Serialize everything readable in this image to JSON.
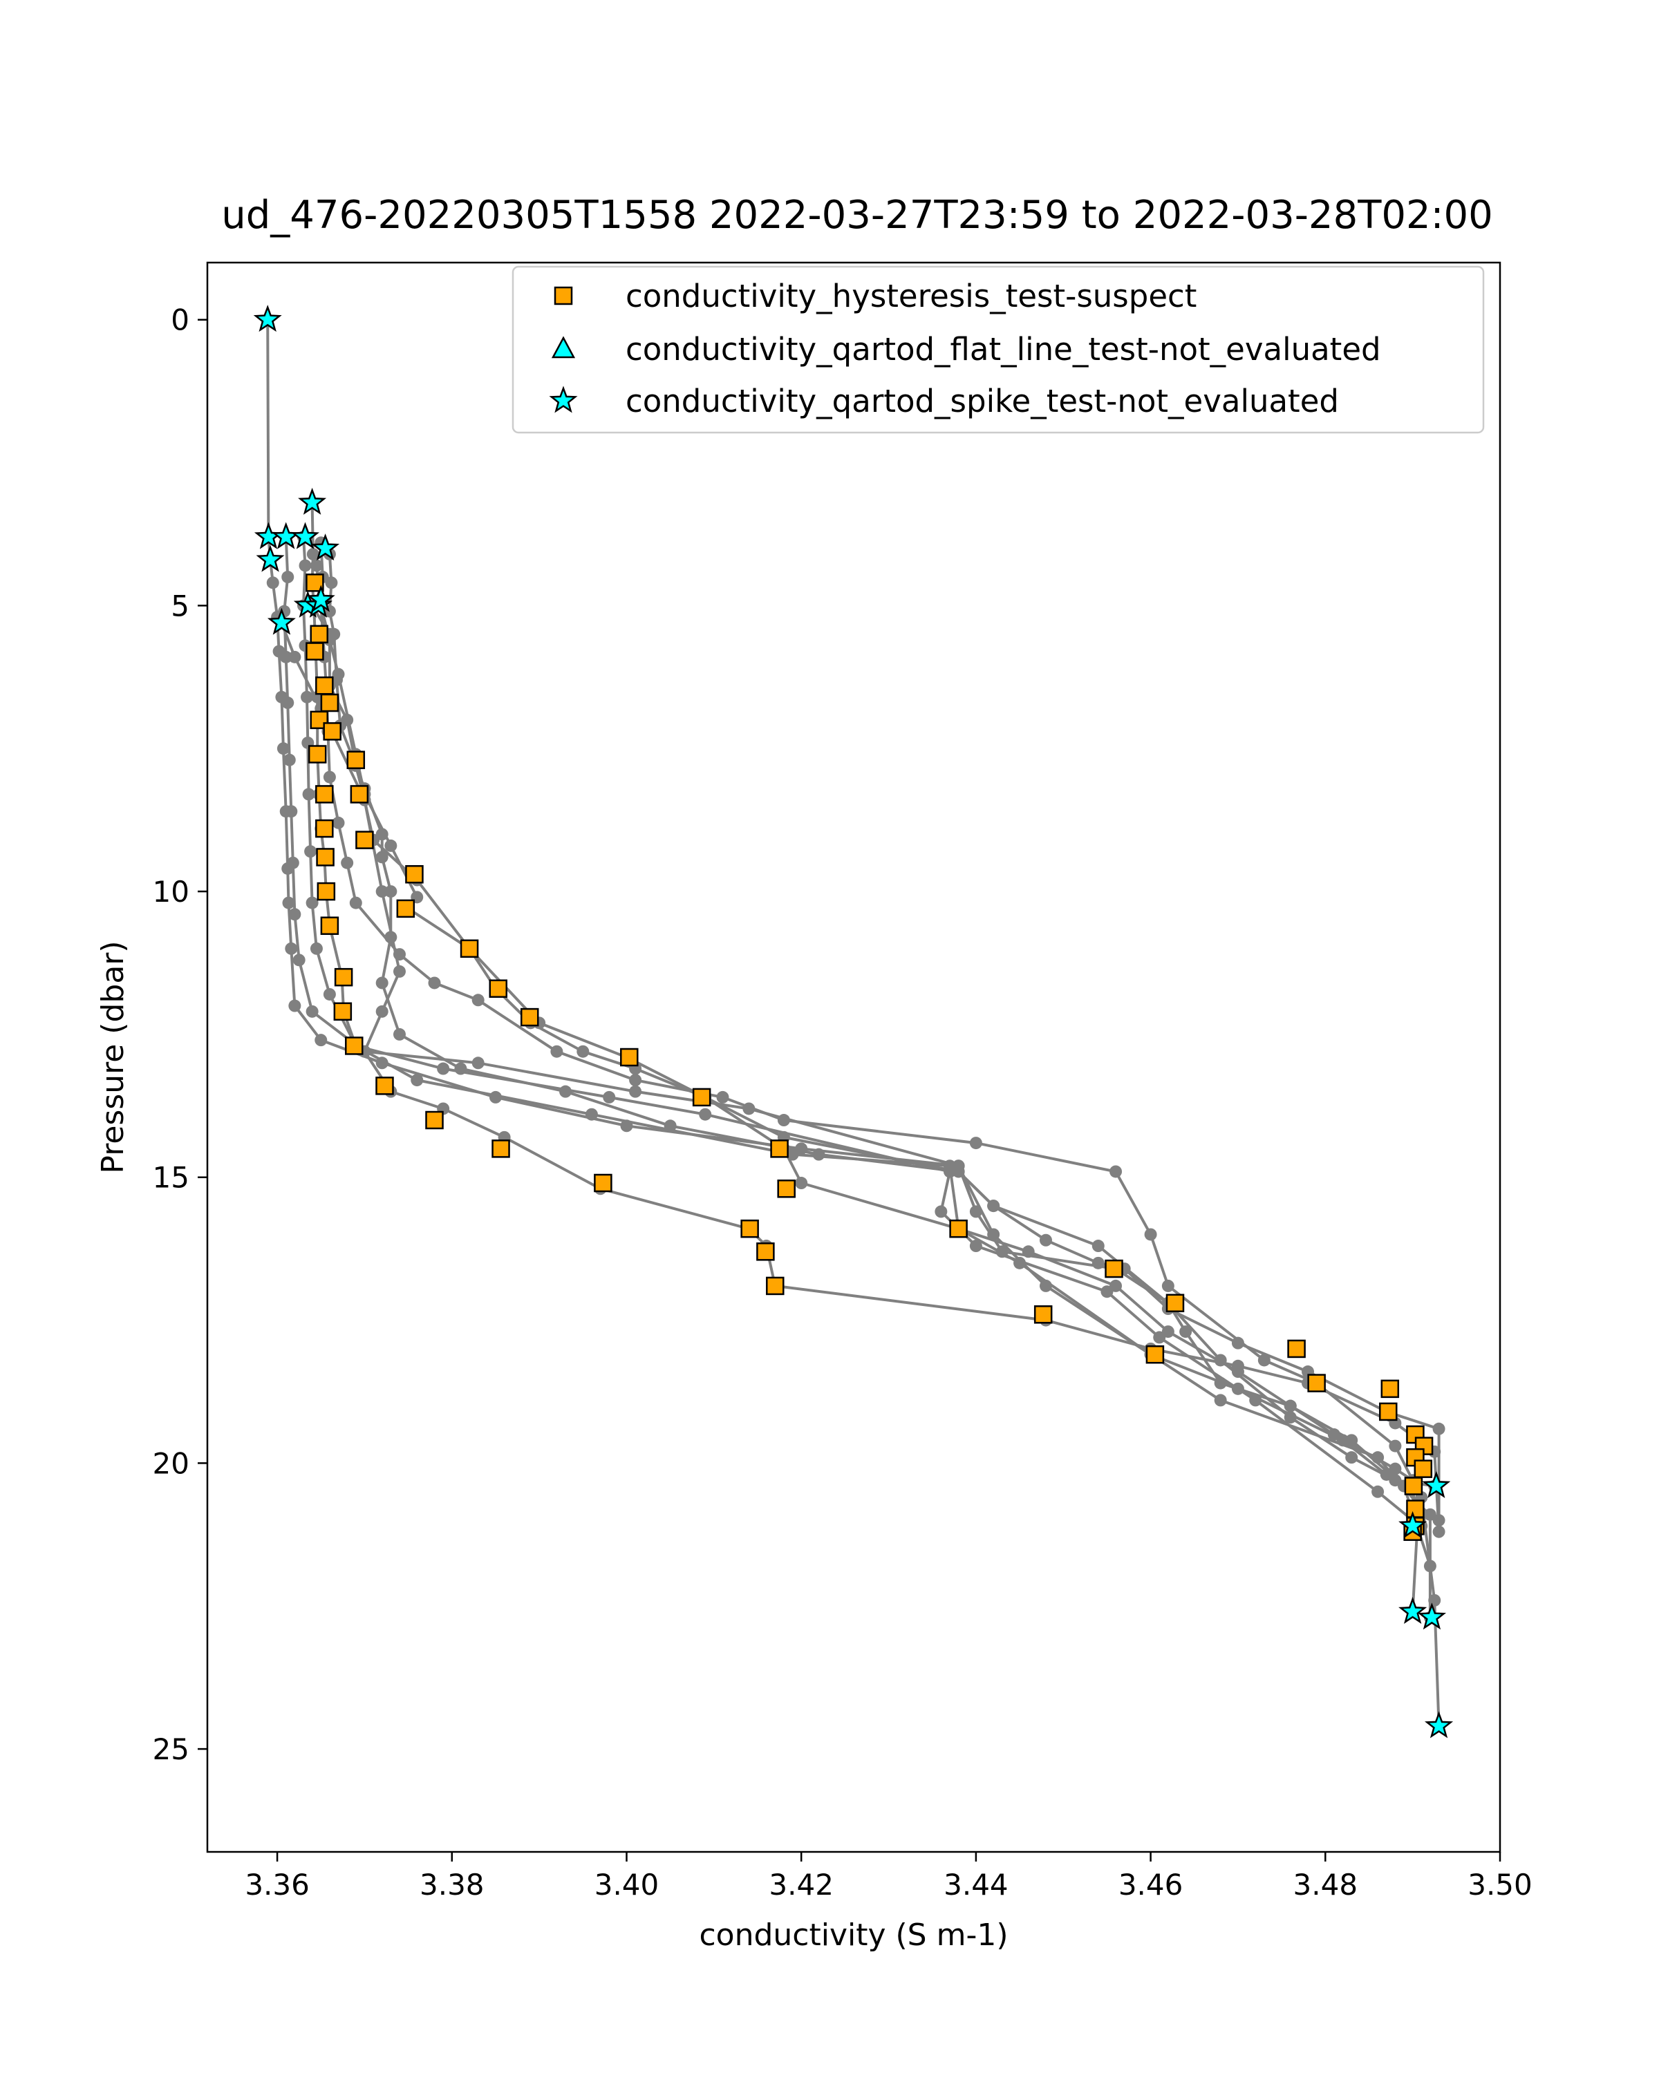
{
  "chart_data": {
    "type": "scatter",
    "title": "ud_476-20220305T1558 2022-03-27T23:59 to 2022-03-28T02:00",
    "xlabel": "conductivity (S m-1)",
    "ylabel": "Pressure (dbar)",
    "xlim": [
      3.352,
      3.5
    ],
    "ylim": [
      26.8,
      -1.0
    ],
    "y_inverted": true,
    "grid": false,
    "legend_position": "upper right",
    "x_ticks": [
      "3.36",
      "3.38",
      "3.40",
      "3.42",
      "3.44",
      "3.46",
      "3.48",
      "3.50"
    ],
    "x_tick_values": [
      3.36,
      3.38,
      3.4,
      3.42,
      3.44,
      3.46,
      3.48,
      3.5
    ],
    "y_ticks": [
      "0",
      "5",
      "10",
      "15",
      "20",
      "25"
    ],
    "y_tick_values": [
      0,
      5,
      10,
      15,
      20,
      25
    ],
    "legend": [
      {
        "label": "conductivity_hysteresis_test-suspect",
        "marker": "square",
        "color": "#ffa500"
      },
      {
        "label": "conductivity_qartod_flat_line_test-not_evaluated",
        "marker": "triangle",
        "color": "#00ffff"
      },
      {
        "label": "conductivity_qartod_spike_test-not_evaluated",
        "marker": "star",
        "color": "#00ffff"
      }
    ],
    "profile_color": "#808080",
    "profiles": [
      [
        [
          3.3589,
          0
        ],
        [
          3.359,
          3.8
        ],
        [
          3.3592,
          4.2
        ],
        [
          3.3595,
          4.6
        ],
        [
          3.36,
          5.2
        ],
        [
          3.3602,
          5.8
        ],
        [
          3.3605,
          6.6
        ],
        [
          3.3607,
          7.5
        ],
        [
          3.361,
          8.6
        ],
        [
          3.3612,
          9.6
        ],
        [
          3.3613,
          10.2
        ],
        [
          3.3616,
          11.0
        ],
        [
          3.362,
          12.0
        ],
        [
          3.365,
          12.6
        ],
        [
          3.372,
          13.0
        ],
        [
          3.385,
          13.6
        ],
        [
          3.4,
          14.1
        ],
        [
          3.42,
          14.5
        ],
        [
          3.438,
          14.8
        ],
        [
          3.442,
          16.0
        ],
        [
          3.448,
          16.9
        ],
        [
          3.46,
          18.1
        ],
        [
          3.47,
          18.7
        ],
        [
          3.482,
          19.6
        ],
        [
          3.487,
          20.2
        ],
        [
          3.49,
          20.4
        ],
        [
          3.4905,
          21.2
        ],
        [
          3.49,
          22.6
        ]
      ],
      [
        [
          3.361,
          3.8
        ],
        [
          3.3612,
          4.5
        ],
        [
          3.3608,
          5.1
        ],
        [
          3.361,
          5.9
        ],
        [
          3.3612,
          6.7
        ],
        [
          3.3614,
          7.7
        ],
        [
          3.3616,
          8.6
        ],
        [
          3.3618,
          9.5
        ],
        [
          3.362,
          10.4
        ],
        [
          3.3625,
          11.2
        ],
        [
          3.364,
          12.1
        ],
        [
          3.37,
          12.8
        ],
        [
          3.383,
          13.0
        ],
        [
          3.401,
          13.5
        ],
        [
          3.414,
          13.8
        ],
        [
          3.438,
          14.8
        ],
        [
          3.44,
          15.6
        ],
        [
          3.443,
          16.3
        ],
        [
          3.456,
          16.6
        ],
        [
          3.462,
          17.2
        ],
        [
          3.468,
          18.2
        ],
        [
          3.476,
          19.2
        ],
        [
          3.483,
          19.9
        ],
        [
          3.488,
          20.3
        ],
        [
          3.4925,
          20.4
        ]
      ],
      [
        [
          3.363,
          3.8
        ],
        [
          3.3632,
          4.3
        ],
        [
          3.363,
          5.0
        ],
        [
          3.3632,
          5.7
        ],
        [
          3.3634,
          6.6
        ],
        [
          3.3635,
          7.4
        ],
        [
          3.3636,
          8.3
        ],
        [
          3.3638,
          9.3
        ],
        [
          3.364,
          10.2
        ],
        [
          3.3645,
          11.0
        ],
        [
          3.366,
          11.8
        ],
        [
          3.369,
          12.7
        ],
        [
          3.379,
          13.1
        ],
        [
          3.398,
          13.6
        ],
        [
          3.409,
          13.9
        ],
        [
          3.437,
          14.9
        ],
        [
          3.436,
          15.6
        ],
        [
          3.44,
          16.2
        ],
        [
          3.455,
          17.0
        ],
        [
          3.461,
          17.8
        ],
        [
          3.472,
          18.9
        ],
        [
          3.486,
          20.5
        ],
        [
          3.49,
          21.0
        ],
        [
          3.491,
          21.1
        ]
      ],
      [
        [
          3.364,
          3.2
        ],
        [
          3.3641,
          4.1
        ],
        [
          3.364,
          4.6
        ],
        [
          3.3642,
          5.0
        ],
        [
          3.3644,
          5.8
        ],
        [
          3.3646,
          6.6
        ],
        [
          3.3646,
          7.6
        ],
        [
          3.3648,
          8.3
        ],
        [
          3.365,
          8.9
        ],
        [
          3.3654,
          9.4
        ],
        [
          3.3656,
          10.0
        ],
        [
          3.366,
          10.6
        ],
        [
          3.3674,
          11.5
        ],
        [
          3.3676,
          12.1
        ],
        [
          3.369,
          12.7
        ],
        [
          3.376,
          13.3
        ],
        [
          3.396,
          13.9
        ],
        [
          3.419,
          14.6
        ],
        [
          3.437,
          14.8
        ],
        [
          3.438,
          15.9
        ],
        [
          3.445,
          16.5
        ],
        [
          3.46,
          18.1
        ],
        [
          3.468,
          18.9
        ],
        [
          3.486,
          19.9
        ],
        [
          3.4905,
          20.7
        ],
        [
          3.492,
          20.9
        ],
        [
          3.492,
          22.7
        ]
      ],
      [
        [
          3.365,
          3.9
        ],
        [
          3.3652,
          4.5
        ],
        [
          3.365,
          5.0
        ],
        [
          3.3654,
          5.9
        ],
        [
          3.3656,
          6.4
        ],
        [
          3.3658,
          7.2
        ],
        [
          3.366,
          8.0
        ],
        [
          3.367,
          8.8
        ],
        [
          3.368,
          9.5
        ],
        [
          3.369,
          10.2
        ],
        [
          3.374,
          11.1
        ],
        [
          3.378,
          11.6
        ],
        [
          3.383,
          11.9
        ],
        [
          3.392,
          12.8
        ],
        [
          3.401,
          13.3
        ],
        [
          3.411,
          13.6
        ],
        [
          3.418,
          14.0
        ],
        [
          3.44,
          14.4
        ],
        [
          3.456,
          14.9
        ],
        [
          3.46,
          16.0
        ],
        [
          3.462,
          16.9
        ],
        [
          3.473,
          18.2
        ],
        [
          3.479,
          18.6
        ],
        [
          3.488,
          19.7
        ],
        [
          3.491,
          20.6
        ],
        [
          3.4925,
          22.4
        ],
        [
          3.493,
          24.6
        ]
      ],
      [
        [
          3.366,
          4.1
        ],
        [
          3.3662,
          4.6
        ],
        [
          3.366,
          5.1
        ],
        [
          3.3665,
          5.5
        ],
        [
          3.3668,
          6.3
        ],
        [
          3.3672,
          7.1
        ],
        [
          3.369,
          7.8
        ],
        [
          3.37,
          8.4
        ],
        [
          3.371,
          9.1
        ],
        [
          3.376,
          9.8
        ],
        [
          3.382,
          11.0
        ],
        [
          3.385,
          11.7
        ],
        [
          3.389,
          12.3
        ],
        [
          3.395,
          12.8
        ],
        [
          3.401,
          13.1
        ],
        [
          3.409,
          13.6
        ],
        [
          3.418,
          14.3
        ],
        [
          3.438,
          14.9
        ],
        [
          3.442,
          15.5
        ],
        [
          3.448,
          16.1
        ],
        [
          3.454,
          16.5
        ],
        [
          3.457,
          16.6
        ],
        [
          3.462,
          17.3
        ],
        [
          3.47,
          17.9
        ],
        [
          3.478,
          18.4
        ],
        [
          3.487,
          19.1
        ],
        [
          3.493,
          19.4
        ],
        [
          3.493,
          21.0
        ]
      ],
      [
        [
          3.3645,
          4.3
        ],
        [
          3.365,
          5.0
        ],
        [
          3.366,
          5.6
        ],
        [
          3.367,
          6.2
        ],
        [
          3.369,
          7.6
        ],
        [
          3.37,
          8.3
        ],
        [
          3.373,
          9.2
        ],
        [
          3.376,
          10.1
        ],
        [
          3.375,
          10.3
        ],
        [
          3.382,
          11.0
        ],
        [
          3.39,
          12.3
        ],
        [
          3.4,
          12.9
        ],
        [
          3.409,
          13.6
        ],
        [
          3.418,
          14.5
        ],
        [
          3.42,
          15.1
        ],
        [
          3.438,
          15.9
        ],
        [
          3.446,
          16.3
        ],
        [
          3.456,
          16.9
        ],
        [
          3.462,
          17.7
        ],
        [
          3.47,
          18.4
        ],
        [
          3.476,
          19.0
        ],
        [
          3.483,
          19.6
        ],
        [
          3.489,
          20.4
        ],
        [
          3.492,
          21.8
        ]
      ],
      [
        [
          3.3605,
          5.3
        ],
        [
          3.362,
          5.9
        ],
        [
          3.365,
          6.8
        ],
        [
          3.37,
          8.4
        ],
        [
          3.372,
          10.0
        ],
        [
          3.374,
          11.4
        ],
        [
          3.372,
          12.1
        ],
        [
          3.37,
          12.8
        ],
        [
          3.373,
          13.5
        ],
        [
          3.379,
          13.8
        ],
        [
          3.386,
          14.3
        ],
        [
          3.397,
          15.2
        ],
        [
          3.414,
          15.9
        ],
        [
          3.416,
          16.2
        ],
        [
          3.417,
          16.9
        ],
        [
          3.448,
          17.5
        ],
        [
          3.46,
          18.0
        ],
        [
          3.47,
          18.3
        ],
        [
          3.478,
          18.6
        ],
        [
          3.488,
          19.3
        ],
        [
          3.4925,
          19.8
        ],
        [
          3.493,
          21.2
        ]
      ],
      [
        [
          3.364,
          5.0
        ],
        [
          3.366,
          5.5
        ],
        [
          3.366,
          6.4
        ],
        [
          3.368,
          7.0
        ],
        [
          3.369,
          7.8
        ],
        [
          3.37,
          8.2
        ],
        [
          3.372,
          9.0
        ],
        [
          3.372,
          9.4
        ],
        [
          3.373,
          10.0
        ],
        [
          3.373,
          10.8
        ],
        [
          3.372,
          11.6
        ],
        [
          3.374,
          12.5
        ],
        [
          3.381,
          13.1
        ],
        [
          3.393,
          13.5
        ],
        [
          3.405,
          14.1
        ],
        [
          3.422,
          14.6
        ],
        [
          3.438,
          14.9
        ],
        [
          3.442,
          15.5
        ],
        [
          3.454,
          16.2
        ],
        [
          3.462,
          17.2
        ],
        [
          3.464,
          17.7
        ],
        [
          3.468,
          18.6
        ],
        [
          3.476,
          19.0
        ],
        [
          3.481,
          19.5
        ],
        [
          3.488,
          20.1
        ],
        [
          3.49,
          20.3
        ]
      ]
    ],
    "hysteresis_suspect": [
      [
        3.3643,
        4.6
      ],
      [
        3.3643,
        5.8
      ],
      [
        3.3648,
        5.5
      ],
      [
        3.3654,
        6.4
      ],
      [
        3.366,
        6.7
      ],
      [
        3.3648,
        7.0
      ],
      [
        3.3663,
        7.2
      ],
      [
        3.3646,
        7.6
      ],
      [
        3.369,
        7.7
      ],
      [
        3.3654,
        8.3
      ],
      [
        3.3694,
        8.3
      ],
      [
        3.3654,
        8.9
      ],
      [
        3.37,
        9.1
      ],
      [
        3.3655,
        9.4
      ],
      [
        3.3757,
        9.7
      ],
      [
        3.3656,
        10.0
      ],
      [
        3.3747,
        10.3
      ],
      [
        3.366,
        10.6
      ],
      [
        3.382,
        11.0
      ],
      [
        3.3676,
        11.5
      ],
      [
        3.3853,
        11.7
      ],
      [
        3.3675,
        12.1
      ],
      [
        3.3889,
        12.2
      ],
      [
        3.3688,
        12.7
      ],
      [
        3.4003,
        12.9
      ],
      [
        3.3723,
        13.4
      ],
      [
        3.4086,
        13.6
      ],
      [
        3.378,
        14.0
      ],
      [
        3.4175,
        14.5
      ],
      [
        3.3856,
        14.5
      ],
      [
        3.4183,
        15.2
      ],
      [
        3.3973,
        15.1
      ],
      [
        3.438,
        15.9
      ],
      [
        3.4141,
        15.9
      ],
      [
        3.4159,
        16.3
      ],
      [
        3.4558,
        16.6
      ],
      [
        3.417,
        16.9
      ],
      [
        3.4628,
        17.2
      ],
      [
        3.4477,
        17.4
      ],
      [
        3.4767,
        18.0
      ],
      [
        3.4605,
        18.1
      ],
      [
        3.479,
        18.6
      ],
      [
        3.4874,
        18.7
      ],
      [
        3.4872,
        19.1
      ],
      [
        3.4903,
        19.5
      ],
      [
        3.4913,
        19.7
      ],
      [
        3.4903,
        19.9
      ],
      [
        3.4912,
        20.1
      ],
      [
        3.4901,
        20.4
      ],
      [
        3.4903,
        20.8
      ],
      [
        3.4903,
        21.1
      ],
      [
        3.49,
        21.2
      ]
    ],
    "spike_not_evaluated": [
      [
        3.3589,
        0
      ],
      [
        3.364,
        3.2
      ],
      [
        3.359,
        3.8
      ],
      [
        3.361,
        3.8
      ],
      [
        3.3632,
        3.8
      ],
      [
        3.3655,
        4.0
      ],
      [
        3.3592,
        4.2
      ],
      [
        3.3635,
        5.0
      ],
      [
        3.3647,
        5.0
      ],
      [
        3.365,
        4.9
      ],
      [
        3.3605,
        5.3
      ],
      [
        3.4927,
        20.4
      ],
      [
        3.49,
        21.1
      ],
      [
        3.49,
        22.6
      ],
      [
        3.4922,
        22.7
      ],
      [
        3.493,
        24.6
      ]
    ]
  }
}
